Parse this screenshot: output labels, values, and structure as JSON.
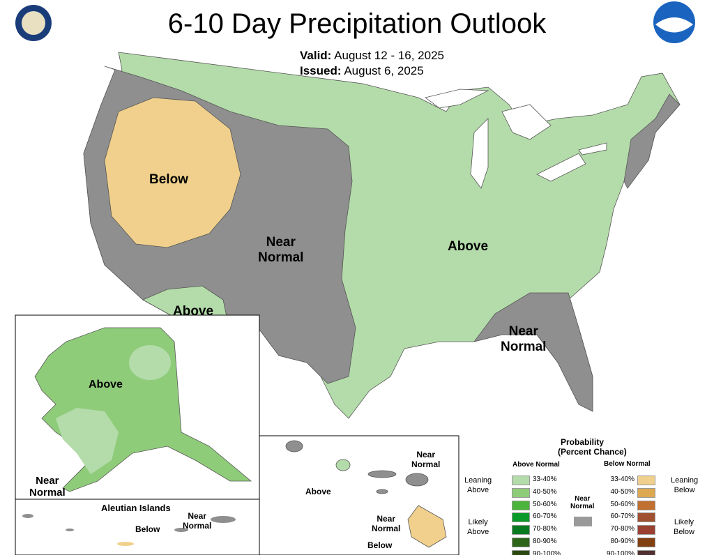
{
  "title": "6-10 Day Precipitation Outlook",
  "valid_label": "Valid:",
  "valid": "August 12 - 16, 2025",
  "issued_label": "Issued:",
  "issued": "August 6, 2025",
  "logos": {
    "left": "DEPARTMENT OF COMMERCE - UNITED STATES OF AMERICA",
    "right": "NOAA"
  },
  "regions": {
    "west_below": "Below",
    "west_near_1": "Near",
    "west_near_2": "Normal",
    "east_above": "Above",
    "sw_above": "Above",
    "se_near_1": "Near",
    "se_near_2": "Normal"
  },
  "alaska": {
    "above": "Above",
    "near_1": "Near",
    "near_2": "Normal",
    "aleutian_title": "Aleutian Islands",
    "aleutian_below": "Below",
    "aleutian_near_1": "Near",
    "aleutian_near_2": "Normal"
  },
  "hawaii": {
    "above": "Above",
    "near_a_1": "Near",
    "near_a_2": "Normal",
    "near_b_1": "Near",
    "near_b_2": "Normal",
    "below": "Below"
  },
  "legend": {
    "title_1": "Probability",
    "title_2": "(Percent Chance)",
    "above_header": "Above Normal",
    "below_header": "Below Normal",
    "near_1": "Near",
    "near_2": "Normal",
    "near_color": "#9a9a9a",
    "leaning_above_1": "Leaning",
    "leaning_above_2": "Above",
    "likely_above_1": "Likely",
    "likely_above_2": "Above",
    "leaning_below_1": "Leaning",
    "leaning_below_2": "Below",
    "likely_below_1": "Likely",
    "likely_below_2": "Below",
    "above": [
      {
        "range": "33-40%",
        "color": "#b4dcaa"
      },
      {
        "range": "40-50%",
        "color": "#8fcc7a"
      },
      {
        "range": "50-60%",
        "color": "#4cb43c"
      },
      {
        "range": "60-70%",
        "color": "#0a9a2a"
      },
      {
        "range": "70-80%",
        "color": "#0a7a20"
      },
      {
        "range": "80-90%",
        "color": "#2c6418"
      },
      {
        "range": "90-100%",
        "color": "#2a4a10"
      }
    ],
    "below": [
      {
        "range": "33-40%",
        "color": "#f0d08c"
      },
      {
        "range": "40-50%",
        "color": "#dca850"
      },
      {
        "range": "50-60%",
        "color": "#c07030"
      },
      {
        "range": "60-70%",
        "color": "#a05030"
      },
      {
        "range": "70-80%",
        "color": "#9a4030"
      },
      {
        "range": "80-90%",
        "color": "#804010"
      },
      {
        "range": "90-100%",
        "color": "#503030"
      }
    ]
  },
  "colors": {
    "near": "#8f8f8f",
    "leaning_above": "#b4dcaa",
    "above_40": "#8fcc7a",
    "leaning_below": "#f0d08c"
  }
}
